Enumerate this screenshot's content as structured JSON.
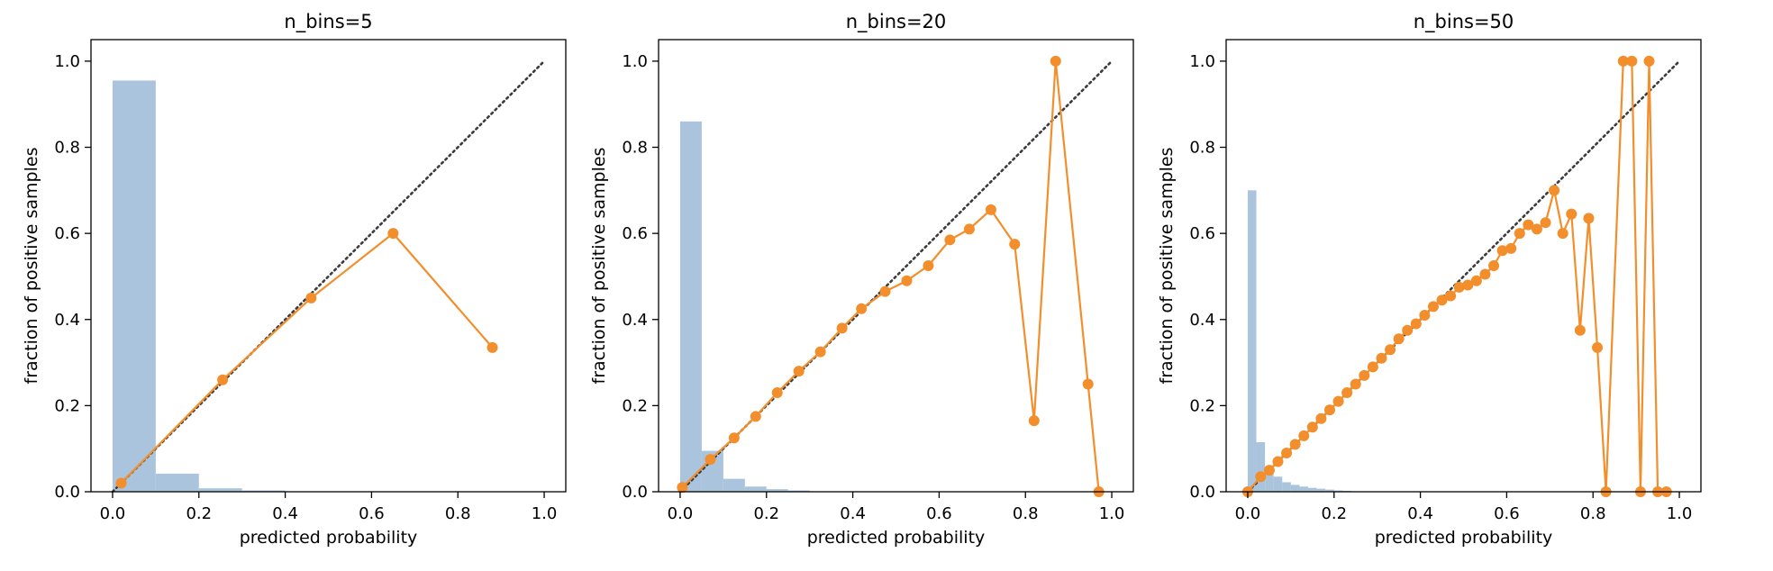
{
  "figure": {
    "colors": {
      "histogram": "#a9c4dc",
      "calibration": "#f28e2b",
      "diagonal": "#3b3b3b"
    }
  },
  "chart_data": [
    {
      "type": "line",
      "title": "n_bins=5",
      "xlabel": "predicted probability",
      "ylabel": "fraction of positive samples",
      "xlim": [
        -0.05,
        1.05
      ],
      "ylim": [
        0,
        1.05
      ],
      "xticks": [
        "0.0",
        "0.2",
        "0.4",
        "0.6",
        "0.8",
        "1.0"
      ],
      "yticks": [
        "0.0",
        "0.2",
        "0.4",
        "0.6",
        "0.8",
        "1.0"
      ],
      "reference_line": {
        "style": "dotted",
        "x": [
          0,
          1
        ],
        "y": [
          0,
          1
        ]
      },
      "histogram": {
        "bin_edges": [
          0,
          0.1,
          0.2,
          0.3,
          0.4,
          0.5
        ],
        "heights": [
          0.955,
          0.042,
          0.008,
          0.003,
          0.001
        ]
      },
      "series": [
        {
          "x": [
            0.02,
            0.255,
            0.46,
            0.65,
            0.88
          ],
          "y": [
            0.02,
            0.26,
            0.45,
            0.6,
            0.335
          ]
        }
      ]
    },
    {
      "type": "line",
      "title": "n_bins=20",
      "xlabel": "predicted probability",
      "ylabel": "fraction of positive samples",
      "xlim": [
        -0.05,
        1.05
      ],
      "ylim": [
        0,
        1.05
      ],
      "xticks": [
        "0.0",
        "0.2",
        "0.4",
        "0.6",
        "0.8",
        "1.0"
      ],
      "yticks": [
        "0.0",
        "0.2",
        "0.4",
        "0.6",
        "0.8",
        "1.0"
      ],
      "reference_line": {
        "style": "dotted",
        "x": [
          0,
          1
        ],
        "y": [
          0,
          1
        ]
      },
      "histogram": {
        "bin_edges": [
          0,
          0.05,
          0.1,
          0.15,
          0.2,
          0.25,
          0.3,
          0.35
        ],
        "heights": [
          0.86,
          0.095,
          0.03,
          0.012,
          0.006,
          0.003,
          0.001
        ]
      },
      "series": [
        {
          "x": [
            0.005,
            0.07,
            0.125,
            0.175,
            0.225,
            0.275,
            0.325,
            0.375,
            0.42,
            0.475,
            0.525,
            0.575,
            0.625,
            0.67,
            0.72,
            0.775,
            0.82,
            0.87,
            0.945,
            0.97
          ],
          "y": [
            0.01,
            0.075,
            0.125,
            0.175,
            0.23,
            0.28,
            0.325,
            0.38,
            0.425,
            0.465,
            0.49,
            0.525,
            0.585,
            0.61,
            0.655,
            0.575,
            0.165,
            1.0,
            0.25,
            0.0
          ]
        }
      ]
    },
    {
      "type": "line",
      "title": "n_bins=50",
      "xlabel": "predicted probability",
      "ylabel": "fraction of positive samples",
      "xlim": [
        -0.05,
        1.05
      ],
      "ylim": [
        0,
        1.05
      ],
      "xticks": [
        "0.0",
        "0.2",
        "0.4",
        "0.6",
        "0.8",
        "1.0"
      ],
      "yticks": [
        "0.0",
        "0.2",
        "0.4",
        "0.6",
        "0.8",
        "1.0"
      ],
      "reference_line": {
        "style": "dotted",
        "x": [
          0,
          1
        ],
        "y": [
          0,
          1
        ]
      },
      "histogram": {
        "bin_edges": [
          0,
          0.02,
          0.04,
          0.06,
          0.08,
          0.1,
          0.12,
          0.14,
          0.16,
          0.18,
          0.2,
          0.22,
          0.24
        ],
        "heights": [
          0.7,
          0.115,
          0.055,
          0.035,
          0.022,
          0.016,
          0.012,
          0.009,
          0.007,
          0.005,
          0.003,
          0.002
        ]
      },
      "series": [
        {
          "x": [
            0.0,
            0.03,
            0.05,
            0.07,
            0.09,
            0.11,
            0.13,
            0.15,
            0.17,
            0.19,
            0.21,
            0.23,
            0.25,
            0.27,
            0.29,
            0.31,
            0.33,
            0.35,
            0.37,
            0.39,
            0.41,
            0.43,
            0.45,
            0.47,
            0.49,
            0.51,
            0.53,
            0.55,
            0.57,
            0.59,
            0.61,
            0.63,
            0.65,
            0.67,
            0.69,
            0.71,
            0.73,
            0.75,
            0.77,
            0.79,
            0.81,
            0.83,
            0.87,
            0.89,
            0.91,
            0.93,
            0.95,
            0.97
          ],
          "y": [
            0.0,
            0.035,
            0.05,
            0.07,
            0.09,
            0.11,
            0.13,
            0.15,
            0.17,
            0.19,
            0.21,
            0.23,
            0.25,
            0.27,
            0.29,
            0.31,
            0.33,
            0.355,
            0.375,
            0.39,
            0.41,
            0.43,
            0.445,
            0.455,
            0.475,
            0.48,
            0.49,
            0.505,
            0.525,
            0.56,
            0.565,
            0.6,
            0.62,
            0.61,
            0.625,
            0.7,
            0.6,
            0.645,
            0.375,
            0.635,
            0.335,
            0.0,
            1.0,
            1.0,
            0.0,
            1.0,
            0.0,
            0.0
          ]
        }
      ]
    }
  ]
}
